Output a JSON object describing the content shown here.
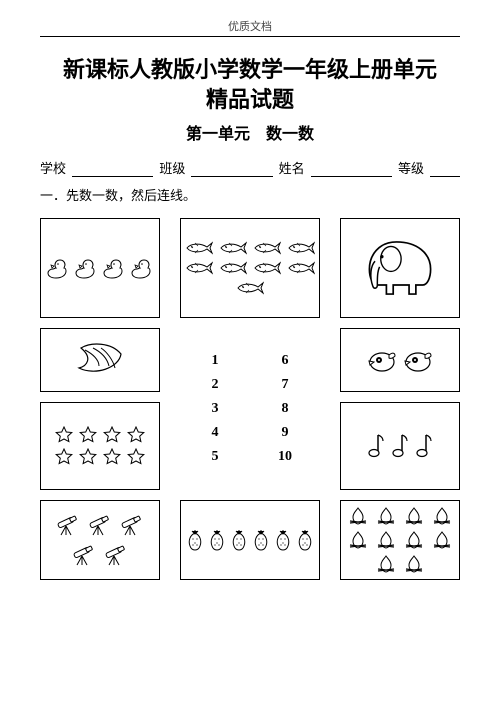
{
  "header_label": "优质文档",
  "title_line1": "新课标人教版小学数学一年级上册单元",
  "title_line2": "精品试题",
  "subtitle": "第一单元　数一数",
  "info": {
    "school": "学校",
    "class": "班级",
    "name": "姓名",
    "grade": "等级"
  },
  "q1": "一．先数一数，然后连线。",
  "numbers_left": [
    "1",
    "2",
    "3",
    "4",
    "5"
  ],
  "numbers_right": [
    "6",
    "7",
    "8",
    "9",
    "10"
  ],
  "cells": {
    "r1c1": {
      "icon": "duck",
      "count": 4,
      "name": "ducks-cell"
    },
    "r1c2": {
      "icon": "fish",
      "count": 9,
      "name": "fish-cell"
    },
    "r1c3": {
      "icon": "elephant",
      "count": 1,
      "name": "elephant-cell"
    },
    "r2c1": {
      "icon": "banana",
      "count": 1,
      "name": "bananas-cell"
    },
    "r2c3": {
      "icon": "bird",
      "count": 2,
      "name": "birds-cell"
    },
    "r3c1": {
      "icon": "star",
      "count": 8,
      "name": "stars-cell"
    },
    "r3c3": {
      "icon": "note",
      "count": 3,
      "name": "notes-cell"
    },
    "r4c1": {
      "icon": "telescope",
      "count": 5,
      "name": "telescopes-cell"
    },
    "r4c2": {
      "icon": "strawberry",
      "count": 6,
      "name": "strawberries-cell"
    },
    "r4c3": {
      "icon": "fire",
      "count": 10,
      "name": "fires-cell"
    }
  },
  "colors": {
    "stroke": "#000000",
    "fill": "#ffffff"
  }
}
